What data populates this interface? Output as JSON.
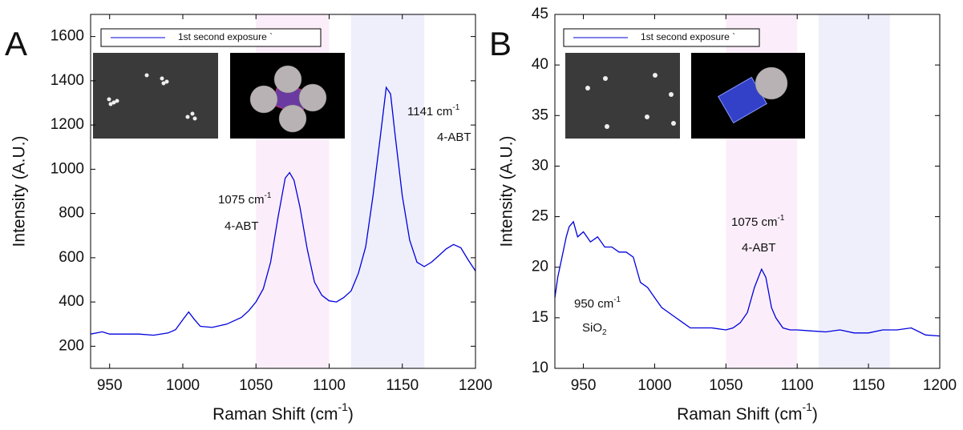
{
  "chart_data": [
    {
      "type": "line",
      "panel_label": "A",
      "x_label": [
        "Raman Shift (cm",
        "-1",
        ")"
      ],
      "y_label": "Intensity (A.U.)",
      "legend_text": "1st second exposure `",
      "xlim": [
        937,
        1200
      ],
      "xticks": [
        950,
        1000,
        1050,
        1100,
        1150,
        1200
      ],
      "ylim": [
        100,
        1700
      ],
      "yticks": [
        200,
        400,
        600,
        800,
        1000,
        1200,
        1400,
        1600
      ],
      "shaded_regions": [
        {
          "xlim": [
            1050,
            1100
          ],
          "color": "#fbeefa"
        },
        {
          "xlim": [
            1115,
            1165
          ],
          "color": "#eeeffb"
        }
      ],
      "annotations": [
        {
          "text": "1075 cm",
          "sup": "-1",
          "label": "4-ABT"
        },
        {
          "text": "1141 cm",
          "sup": "-1",
          "label": "4-ABT"
        }
      ],
      "x": [
        937,
        945,
        950,
        960,
        970,
        980,
        990,
        995,
        1000,
        1004,
        1008,
        1012,
        1020,
        1030,
        1040,
        1045,
        1050,
        1055,
        1060,
        1065,
        1070,
        1073,
        1076,
        1080,
        1085,
        1090,
        1095,
        1100,
        1105,
        1110,
        1115,
        1120,
        1125,
        1130,
        1135,
        1139,
        1142,
        1145,
        1150,
        1155,
        1160,
        1165,
        1170,
        1175,
        1180,
        1185,
        1190,
        1195,
        1200
      ],
      "series": [
        {
          "name": "1st second exposure `",
          "color": "#0000dd",
          "values": [
            255,
            265,
            255,
            255,
            255,
            250,
            260,
            275,
            320,
            355,
            320,
            290,
            285,
            300,
            330,
            360,
            400,
            460,
            580,
            780,
            960,
            985,
            950,
            830,
            640,
            490,
            430,
            405,
            400,
            420,
            450,
            530,
            650,
            880,
            1150,
            1370,
            1340,
            1160,
            880,
            680,
            580,
            560,
            580,
            610,
            640,
            660,
            645,
            590,
            540
          ]
        }
      ]
    },
    {
      "type": "line",
      "panel_label": "B",
      "x_label": [
        "Raman Shift (cm",
        "-1",
        ")"
      ],
      "y_label": "Intensity (A.U.)",
      "legend_text": "1st second exposure `",
      "xlim": [
        930,
        1200
      ],
      "xticks": [
        950,
        1000,
        1050,
        1100,
        1150,
        1200
      ],
      "ylim": [
        10,
        45
      ],
      "yticks": [
        10,
        15,
        20,
        25,
        30,
        35,
        40,
        45
      ],
      "shaded_regions": [
        {
          "xlim": [
            1050,
            1100
          ],
          "color": "#fbeefa"
        },
        {
          "xlim": [
            1115,
            1165
          ],
          "color": "#eeeffb"
        }
      ],
      "annotations": [
        {
          "text": "1075 cm",
          "sup": "-1",
          "label": "4-ABT"
        },
        {
          "text": "950 cm",
          "sup": "-1",
          "label": "SiO",
          "sub": "2"
        }
      ],
      "x": [
        930,
        932,
        935,
        938,
        940,
        943,
        946,
        950,
        955,
        960,
        965,
        970,
        975,
        980,
        985,
        988,
        990,
        995,
        1000,
        1005,
        1010,
        1015,
        1020,
        1025,
        1030,
        1040,
        1050,
        1055,
        1060,
        1065,
        1070,
        1075,
        1078,
        1082,
        1085,
        1090,
        1095,
        1100,
        1110,
        1120,
        1130,
        1140,
        1150,
        1160,
        1170,
        1180,
        1190,
        1200
      ],
      "series": [
        {
          "name": "1st second exposure `",
          "color": "#0000dd",
          "values": [
            17,
            19,
            21,
            23,
            24,
            24.5,
            23,
            23.5,
            22.5,
            23,
            22,
            22,
            21.5,
            21.5,
            21,
            19.5,
            18.5,
            18,
            17,
            16,
            15.5,
            15,
            14.5,
            14,
            14,
            14,
            13.8,
            14,
            14.5,
            15.5,
            18,
            19.8,
            19,
            16,
            15,
            14,
            13.8,
            13.8,
            13.7,
            13.6,
            13.8,
            13.5,
            13.5,
            13.8,
            13.8,
            14,
            13.3,
            13.2
          ]
        }
      ]
    }
  ]
}
